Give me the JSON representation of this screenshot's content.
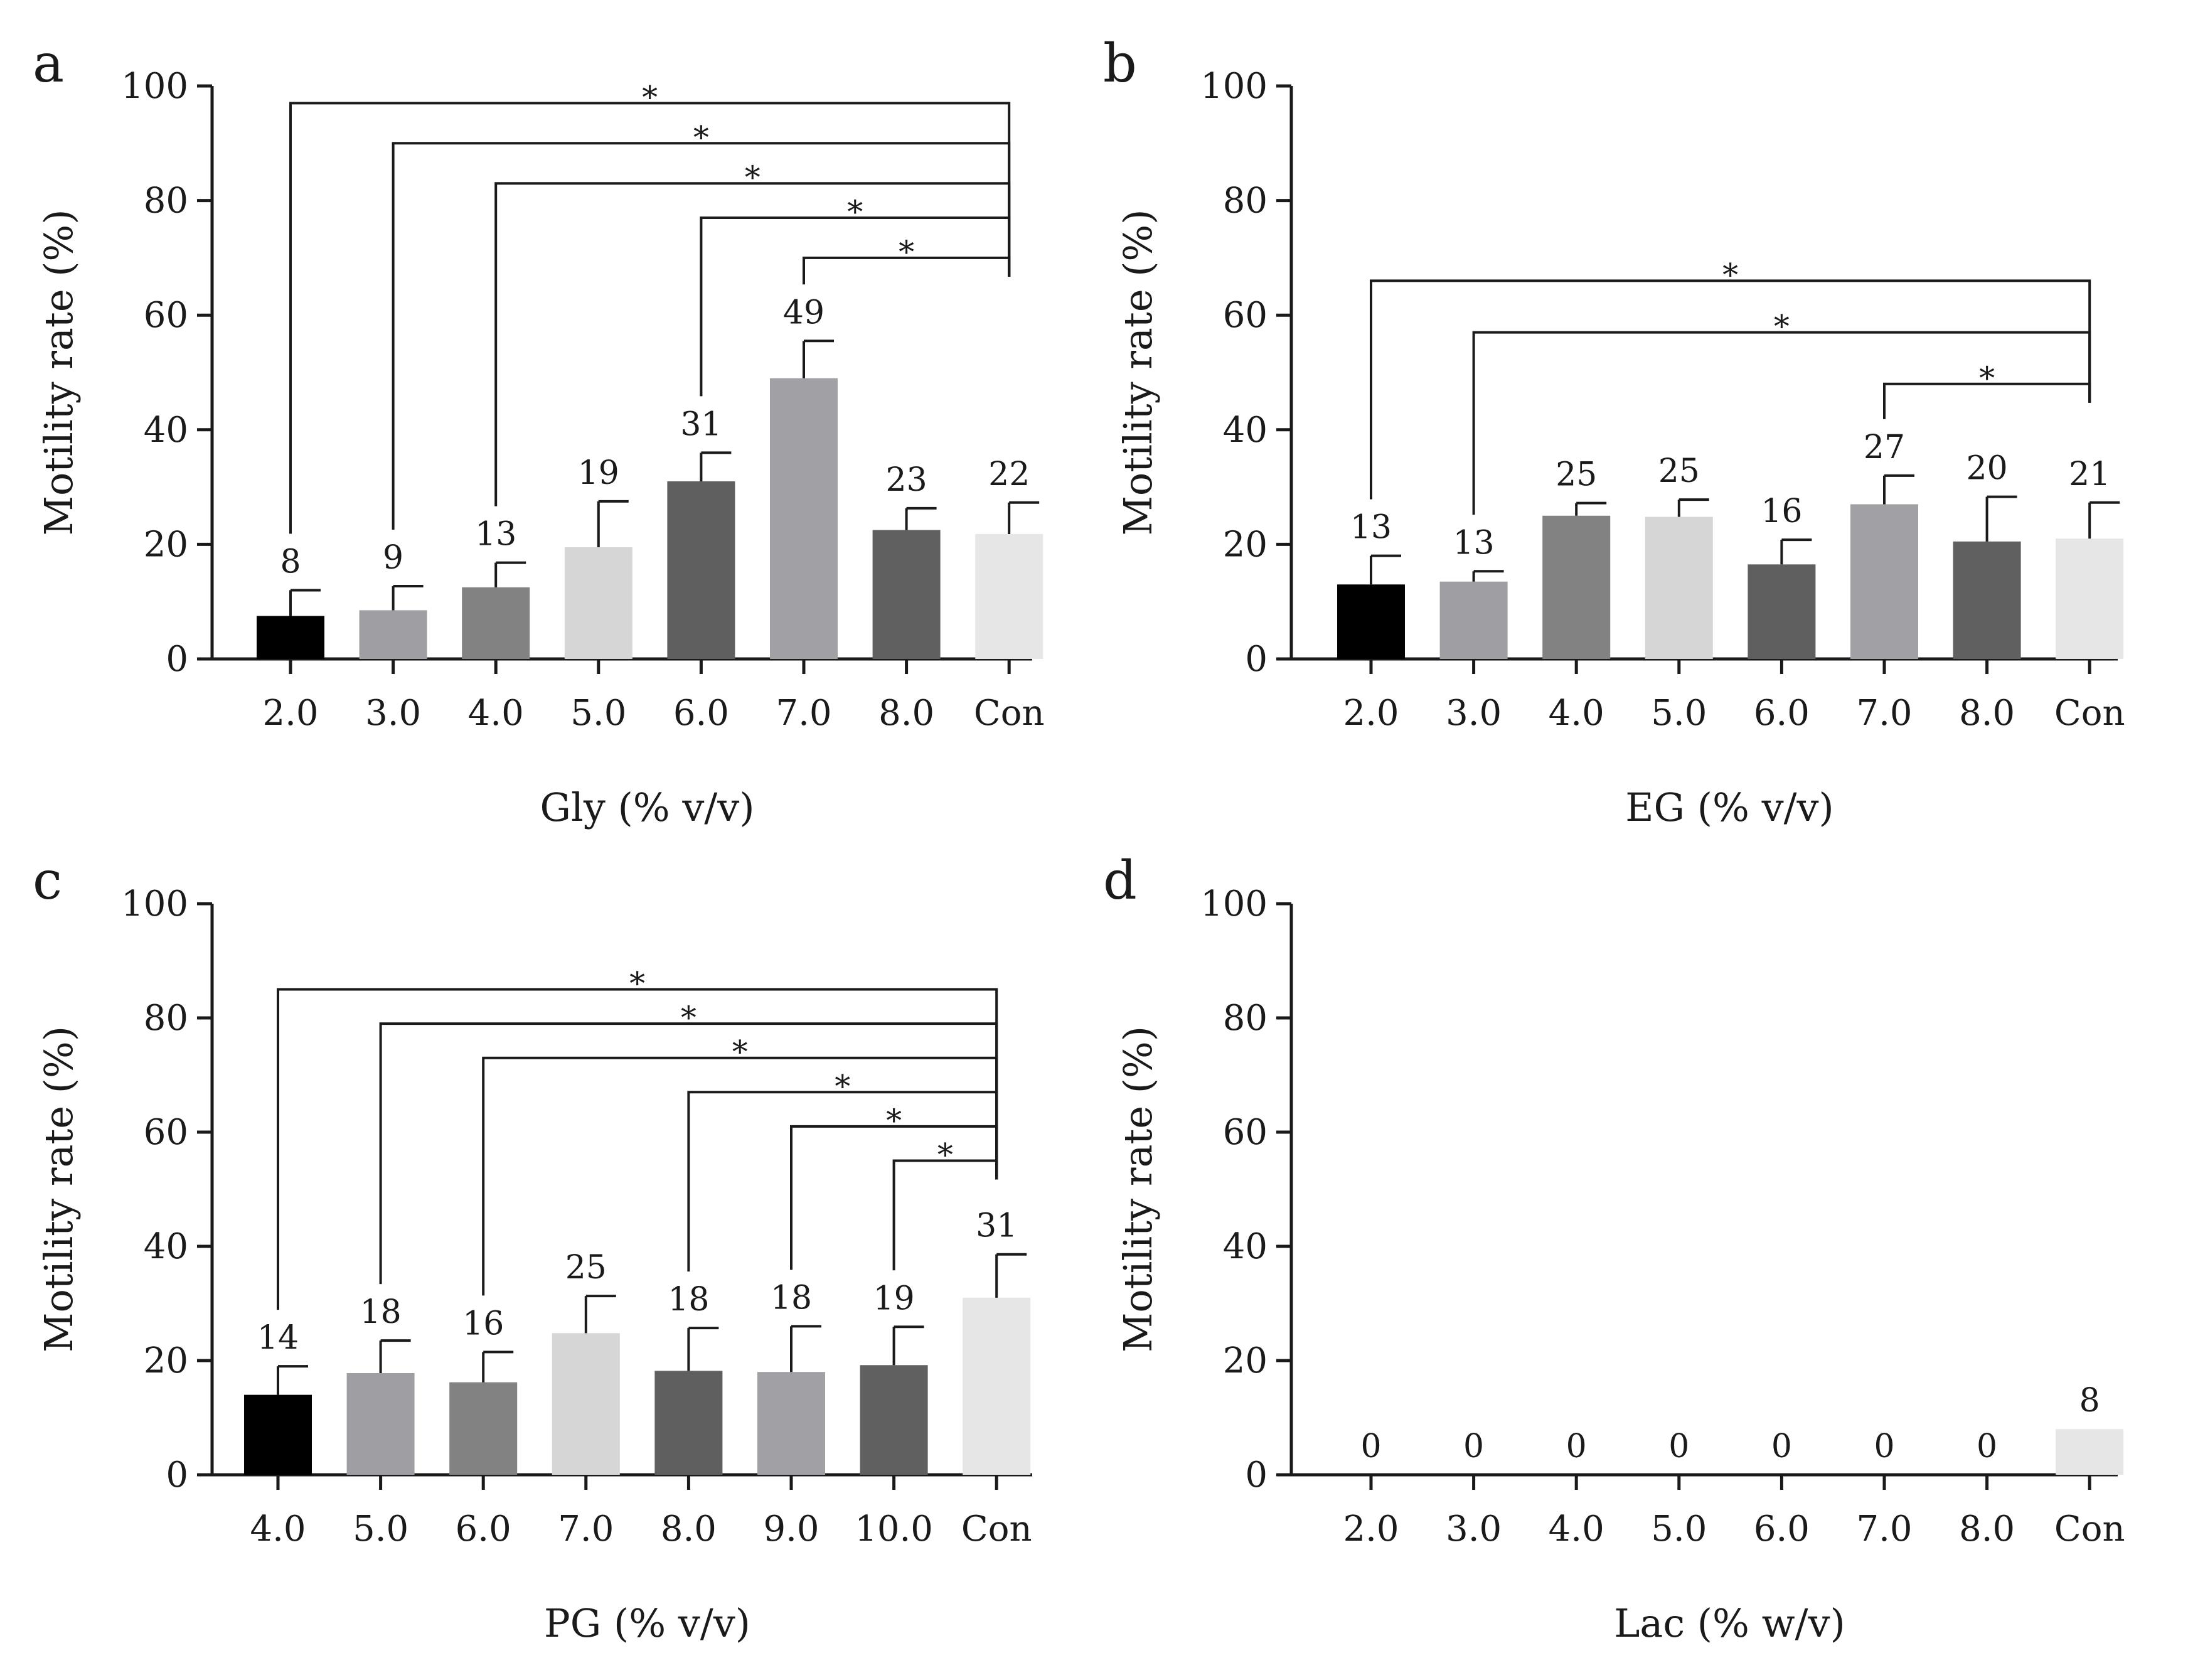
{
  "chart_data": [
    {
      "type": "bar",
      "panel": "a",
      "categories": [
        "2.0",
        "3.0",
        "4.0",
        "5.0",
        "6.0",
        "7.0",
        "8.0",
        "Con"
      ],
      "values": [
        8,
        9,
        13,
        19,
        31,
        49,
        23,
        22
      ],
      "value_labels": [
        "8",
        "9",
        "13",
        "19",
        "31",
        "49",
        "23",
        "22"
      ],
      "bar_heights": [
        7.5,
        8.5,
        12.5,
        19.5,
        31,
        49,
        22.5,
        21.8
      ],
      "errors": [
        4.5,
        4.2,
        4.3,
        8,
        5,
        6.5,
        3.8,
        5.5
      ],
      "colors": [
        "#000000",
        "#9e9ea3",
        "#828282",
        "#d6d6d6",
        "#5f5f5f",
        "#a0a0a5",
        "#606060",
        "#e6e6e6"
      ],
      "xlabel": "Gly (% v/v)",
      "ylabel": "Motility rate (%)",
      "ylim": [
        0,
        100
      ],
      "yticks": [
        "0",
        "20",
        "40",
        "60",
        "80",
        "100"
      ],
      "significance": [
        {
          "from": 0,
          "to": 7,
          "label": "*"
        },
        {
          "from": 1,
          "to": 7,
          "label": "*"
        },
        {
          "from": 2,
          "to": 7,
          "label": "*"
        },
        {
          "from": 4,
          "to": 7,
          "label": "*"
        },
        {
          "from": 5,
          "to": 7,
          "label": "*"
        }
      ]
    },
    {
      "type": "bar",
      "panel": "b",
      "categories": [
        "2.0",
        "3.0",
        "4.0",
        "5.0",
        "6.0",
        "7.0",
        "8.0",
        "Con"
      ],
      "values": [
        13,
        13,
        25,
        25,
        16,
        27,
        20,
        21
      ],
      "value_labels": [
        "13",
        "13",
        "25",
        "25",
        "16",
        "27",
        "20",
        "21"
      ],
      "bar_heights": [
        13,
        13.5,
        25,
        24.8,
        16.5,
        27,
        20.5,
        21
      ],
      "errors": [
        5,
        1.8,
        2.2,
        3,
        4.3,
        5,
        7.8,
        6.3
      ],
      "colors": [
        "#000000",
        "#9e9ea3",
        "#828282",
        "#d6d6d6",
        "#5f5f5f",
        "#a0a0a5",
        "#606060",
        "#e6e6e6"
      ],
      "xlabel": "EG (% v/v)",
      "ylabel": "Motility rate (%)",
      "ylim": [
        0,
        100
      ],
      "yticks": [
        "0",
        "20",
        "40",
        "60",
        "80",
        "100"
      ],
      "significance": [
        {
          "from": 0,
          "to": 7,
          "label": "*"
        },
        {
          "from": 1,
          "to": 7,
          "label": "*"
        },
        {
          "from": 5,
          "to": 7,
          "label": "*"
        }
      ]
    },
    {
      "type": "bar",
      "panel": "c",
      "categories": [
        "4.0",
        "5.0",
        "6.0",
        "7.0",
        "8.0",
        "9.0",
        "10.0",
        "Con"
      ],
      "values": [
        14,
        18,
        16,
        25,
        18,
        18,
        19,
        31
      ],
      "value_labels": [
        "14",
        "18",
        "16",
        "25",
        "18",
        "18",
        "19",
        "31"
      ],
      "bar_heights": [
        14,
        17.8,
        16.2,
        24.8,
        18.2,
        18,
        19.2,
        31
      ],
      "errors": [
        5,
        5.7,
        5.3,
        6.5,
        7.5,
        8,
        6.7,
        7.6
      ],
      "colors": [
        "#000000",
        "#9e9ea3",
        "#828282",
        "#d6d6d6",
        "#5f5f5f",
        "#a0a0a5",
        "#606060",
        "#e6e6e6"
      ],
      "xlabel": "PG (% v/v)",
      "ylabel": "Motility rate (%)",
      "ylim": [
        0,
        100
      ],
      "yticks": [
        "0",
        "20",
        "40",
        "60",
        "80",
        "100"
      ],
      "significance": [
        {
          "from": 0,
          "to": 7,
          "label": "*"
        },
        {
          "from": 1,
          "to": 7,
          "label": "*"
        },
        {
          "from": 2,
          "to": 7,
          "label": "*"
        },
        {
          "from": 4,
          "to": 7,
          "label": "*"
        },
        {
          "from": 5,
          "to": 7,
          "label": "*"
        },
        {
          "from": 6,
          "to": 7,
          "label": "*"
        }
      ]
    },
    {
      "type": "bar",
      "panel": "d",
      "categories": [
        "2.0",
        "3.0",
        "4.0",
        "5.0",
        "6.0",
        "7.0",
        "8.0",
        "Con"
      ],
      "values": [
        0,
        0,
        0,
        0,
        0,
        0,
        0,
        8
      ],
      "value_labels": [
        "0",
        "0",
        "0",
        "0",
        "0",
        "0",
        "0",
        "8"
      ],
      "bar_heights": [
        0,
        0,
        0,
        0,
        0,
        0,
        0,
        8
      ],
      "errors": [
        0,
        0,
        0,
        0,
        0,
        0,
        0,
        0
      ],
      "colors": [
        "#000000",
        "#9e9ea3",
        "#828282",
        "#d6d6d6",
        "#5f5f5f",
        "#a0a0a5",
        "#606060",
        "#e6e6e6"
      ],
      "xlabel": "Lac (% w/v)",
      "ylabel": "Motility rate (%)",
      "ylim": [
        0,
        100
      ],
      "yticks": [
        "0",
        "20",
        "40",
        "60",
        "80",
        "100"
      ],
      "significance": []
    }
  ]
}
